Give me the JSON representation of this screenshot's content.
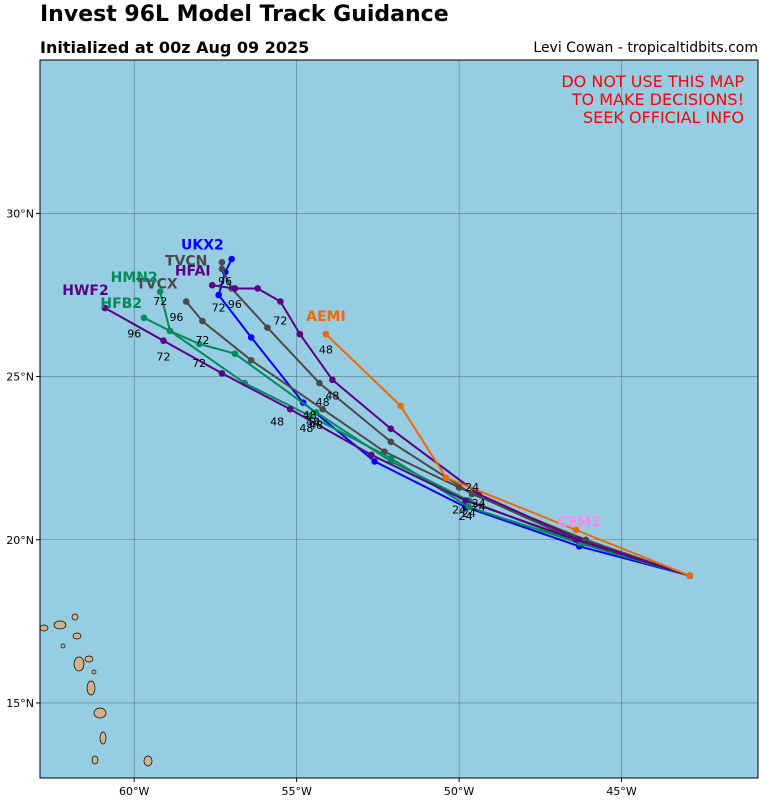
{
  "header": {
    "title": "Invest 96L Model Track Guidance",
    "subtitle": "Initialized at 00z Aug 09 2025",
    "credit": "Levi Cowan - tropicaltidbits.com"
  },
  "warning": [
    "DO NOT USE THIS MAP",
    "TO MAKE DECISIONS!",
    "SEEK OFFICIAL INFO"
  ],
  "map": {
    "lon_range": [
      -62.9,
      -40.8
    ],
    "lat_range": [
      12.7,
      34.7
    ],
    "lat_ticks": [
      {
        "value": 15,
        "label": "15°N"
      },
      {
        "value": 20,
        "label": "20°N"
      },
      {
        "value": 25,
        "label": "25°N"
      },
      {
        "value": 30,
        "label": "30°N"
      }
    ],
    "lon_ticks": [
      {
        "value": -60,
        "label": "60°W"
      },
      {
        "value": -55,
        "label": "55°W"
      },
      {
        "value": -50,
        "label": "50°W"
      },
      {
        "value": -45,
        "label": "45°W"
      }
    ],
    "ocean_color": "#96cde3",
    "land_color": "#d2b48c",
    "grid_color": "#5a7a85"
  },
  "models": [
    {
      "name": "UKX2",
      "color": "#0000ff",
      "points": [
        [
          -42.9,
          18.9
        ],
        [
          -46.3,
          19.8
        ],
        [
          -49.8,
          21.0
        ],
        [
          -52.6,
          22.4
        ],
        [
          -54.8,
          24.2
        ],
        [
          -56.4,
          26.2
        ],
        [
          -57.4,
          27.5
        ],
        [
          -57.2,
          28.2
        ],
        [
          -57.0,
          28.6
        ]
      ],
      "hour_labels": [
        {
          "text": "24",
          "at": [
            -49.8,
            20.6
          ]
        },
        {
          "text": "48",
          "at": [
            -54.5,
            23.5
          ]
        },
        {
          "text": "72",
          "at": [
            -57.4,
            27.0
          ]
        },
        {
          "text": "96",
          "at": [
            -57.2,
            27.8
          ]
        }
      ],
      "name_at": [
        -57.9,
        28.9
      ]
    },
    {
      "name": "TVCN",
      "color": "#4a4a4a",
      "points": [
        [
          -42.9,
          18.9
        ],
        [
          -46.1,
          20.0
        ],
        [
          -49.6,
          21.4
        ],
        [
          -52.1,
          23.0
        ],
        [
          -54.3,
          24.8
        ],
        [
          -55.9,
          26.5
        ],
        [
          -57.0,
          27.7
        ],
        [
          -57.3,
          28.3
        ],
        [
          -57.3,
          28.5
        ]
      ],
      "hour_labels": [
        {
          "text": "24",
          "at": [
            -49.6,
            21.5
          ]
        },
        {
          "text": "48",
          "at": [
            -54.2,
            24.1
          ]
        }
      ],
      "name_at": [
        -58.4,
        28.4
      ]
    },
    {
      "name": "HFAI",
      "color": "#5a0087",
      "points": [
        [
          -42.9,
          18.9
        ],
        [
          -46.3,
          20.0
        ],
        [
          -49.4,
          21.4
        ],
        [
          -52.1,
          23.4
        ],
        [
          -53.9,
          24.9
        ],
        [
          -54.9,
          26.3
        ],
        [
          -55.5,
          27.3
        ],
        [
          -56.2,
          27.7
        ],
        [
          -56.9,
          27.7
        ],
        [
          -57.6,
          27.8
        ]
      ],
      "hour_labels": [
        {
          "text": "24",
          "at": [
            -49.4,
            20.9
          ]
        },
        {
          "text": "48",
          "at": [
            -53.9,
            24.3
          ]
        },
        {
          "text": "72",
          "at": [
            -55.5,
            26.6
          ]
        },
        {
          "text": "96",
          "at": [
            -56.9,
            27.1
          ]
        }
      ],
      "name_at": [
        -58.2,
        28.1
      ]
    },
    {
      "name": "TVCX",
      "color": "#4a4a4a",
      "points": [
        [
          -42.9,
          18.9
        ],
        [
          -46.2,
          19.9
        ],
        [
          -50.0,
          21.6
        ],
        [
          -52.3,
          22.7
        ],
        [
          -54.2,
          24.0
        ],
        [
          -56.4,
          25.5
        ],
        [
          -57.9,
          26.7
        ],
        [
          -58.4,
          27.3
        ]
      ],
      "hour_labels": [
        {
          "text": "24",
          "at": [
            -50.0,
            20.8
          ]
        },
        {
          "text": "48",
          "at": [
            -54.6,
            23.7
          ]
        },
        {
          "text": "72",
          "at": [
            -57.9,
            26.0
          ]
        },
        {
          "text": "96",
          "at": [
            -58.7,
            26.7
          ]
        }
      ],
      "name_at": [
        -59.3,
        27.7
      ]
    },
    {
      "name": "HMN2",
      "color": "#008b5e",
      "points": [
        [
          -42.9,
          18.9
        ],
        [
          -46.3,
          19.9
        ],
        [
          -49.7,
          21.2
        ],
        [
          -52.1,
          22.4
        ],
        [
          -54.4,
          23.9
        ],
        [
          -56.9,
          25.7
        ],
        [
          -58.0,
          26.0
        ],
        [
          -58.9,
          26.4
        ],
        [
          -59.2,
          27.6
        ]
      ],
      "hour_labels": [
        {
          "text": "24",
          "at": [
            -49.4,
            21.0
          ]
        },
        {
          "text": "48",
          "at": [
            -54.4,
            23.4
          ]
        },
        {
          "text": "72",
          "at": [
            -58.0,
            25.3
          ]
        }
      ],
      "name_at": [
        -60.0,
        27.9
      ]
    },
    {
      "name": "HFB2",
      "color": "#008b5e",
      "points": [
        [
          -42.9,
          18.9
        ],
        [
          -46.3,
          19.9
        ],
        [
          -49.7,
          21.0
        ],
        [
          -52.1,
          22.5
        ],
        [
          -54.6,
          23.8
        ],
        [
          -56.6,
          24.8
        ],
        [
          -58.9,
          26.4
        ],
        [
          -59.7,
          26.8
        ]
      ],
      "hour_labels": [
        {
          "text": "24",
          "at": [
            -49.7,
            20.7
          ]
        },
        {
          "text": "48",
          "at": [
            -54.7,
            23.3
          ]
        },
        {
          "text": "72",
          "at": [
            -59.2,
            27.2
          ]
        },
        {
          "text": "96",
          "at": [
            -60.0,
            26.2
          ]
        }
      ],
      "name_at": [
        -60.4,
        27.1
      ]
    },
    {
      "name": "HWF2",
      "color": "#5a0087",
      "points": [
        [
          -42.9,
          18.9
        ],
        [
          -46.4,
          20.0
        ],
        [
          -49.8,
          21.2
        ],
        [
          -52.7,
          22.6
        ],
        [
          -55.2,
          24.0
        ],
        [
          -57.3,
          25.1
        ],
        [
          -59.1,
          26.1
        ],
        [
          -60.9,
          27.1
        ]
      ],
      "hour_labels": [
        {
          "text": "48",
          "at": [
            -55.6,
            23.5
          ]
        },
        {
          "text": "72",
          "at": [
            -59.1,
            25.5
          ]
        }
      ],
      "name_at": [
        -61.5,
        27.5
      ]
    },
    {
      "name": "AEMI",
      "color": "#ef6a00",
      "points": [
        [
          -42.9,
          18.9
        ],
        [
          -46.4,
          20.3
        ],
        [
          -50.4,
          21.9
        ],
        [
          -51.8,
          24.1
        ],
        [
          -54.1,
          26.3
        ]
      ],
      "hour_labels": [
        {
          "text": "48",
          "at": [
            -54.1,
            25.7
          ]
        }
      ],
      "name_at": [
        -54.1,
        26.7
      ]
    },
    {
      "name": "CEM2",
      "color": "#ff88ee",
      "points": [],
      "hour_labels": [],
      "name_at": [
        -46.3,
        20.4
      ]
    }
  ]
}
